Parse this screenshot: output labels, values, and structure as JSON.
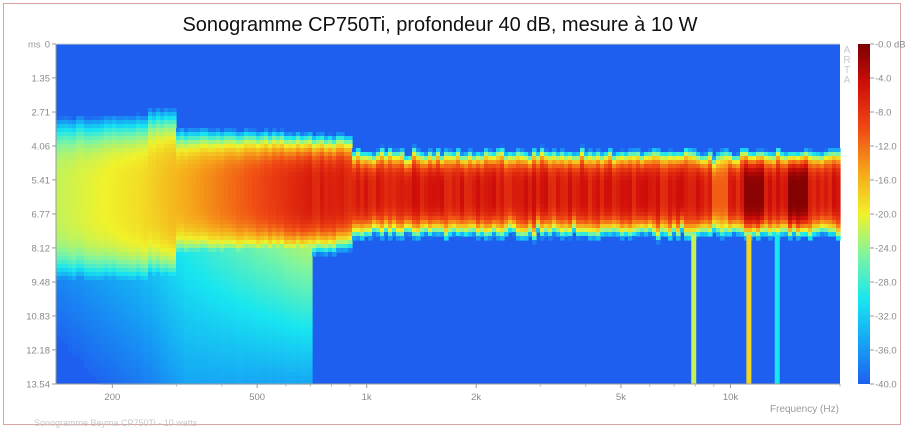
{
  "chart_data": {
    "type": "heatmap",
    "title": "Sonogramme CP750Ti, profondeur 40 dB, mesure à 10 W",
    "subtitle": "Sonogramme Beyma CP750Ti - 10 watts",
    "xlabel": "Frequency (Hz)",
    "ylabel": "ms",
    "x_scale": "log",
    "xlim": [
      140,
      20000
    ],
    "ylim": [
      0,
      13.54
    ],
    "y_ticks": [
      "0",
      "1.35",
      "2.71",
      "4.06",
      "5.41",
      "6.77",
      "8.12",
      "9.48",
      "10.83",
      "12.18",
      "13.54"
    ],
    "x_ticks": [
      {
        "value": 200,
        "label": "200"
      },
      {
        "value": 500,
        "label": "500"
      },
      {
        "value": 1000,
        "label": "1k"
      },
      {
        "value": 2000,
        "label": "2k"
      },
      {
        "value": 5000,
        "label": "5k"
      },
      {
        "value": 10000,
        "label": "10k"
      }
    ],
    "colorbar": {
      "label_top": "-0.0 dB",
      "ticks": [
        "-4.0",
        "-8.0",
        "-12.0",
        "-16.0",
        "-20.0",
        "-24.0",
        "-28.0",
        "-32.0",
        "-36.0",
        "-40.0"
      ],
      "range_db": [
        -40,
        0
      ],
      "colors": [
        "#1e5ff0",
        "#16a3f5",
        "#18e6f0",
        "#7ff5a0",
        "#f0f22a",
        "#f6a81a",
        "#f04a14",
        "#d10f0a",
        "#7a0000"
      ]
    },
    "watermark": "ARTA",
    "peak_ridge": {
      "center_ms": 5.9,
      "peak_db_range": [
        -8,
        0
      ],
      "floor_db": -40
    }
  }
}
